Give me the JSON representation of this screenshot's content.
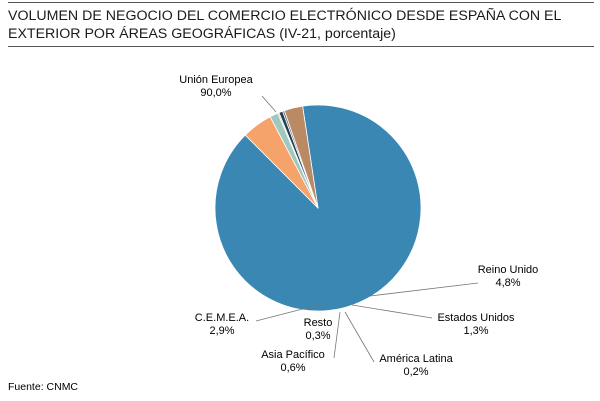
{
  "title": "VOLUMEN DE NEGOCIO DEL COMERCIO ELECTRÓNICO DESDE ESPAÑA CON EL EXTERIOR POR ÁREAS GEOGRÁFICAS (IV-21, porcentaje)",
  "source": "Fuente: CNMC",
  "chart_data": {
    "type": "pie",
    "title": "VOLUMEN DE NEGOCIO DEL COMERCIO ELECTRÓNICO DESDE ESPAÑA CON EL EXTERIOR POR ÁREAS GEOGRÁFICAS (IV-21, porcentaje)",
    "slices": [
      {
        "name": "Unión Europea",
        "value": 90.0,
        "label": "90,0%",
        "color": "#3a87b3"
      },
      {
        "name": "Reino Unido",
        "value": 4.8,
        "label": "4,8%",
        "color": "#f6a26b"
      },
      {
        "name": "Estados Unidos",
        "value": 1.3,
        "label": "1,3%",
        "color": "#9fc9bf"
      },
      {
        "name": "América Latina",
        "value": 0.2,
        "label": "0,2%",
        "color": "#c6b079"
      },
      {
        "name": "Asia Pacífico",
        "value": 0.6,
        "label": "0,6%",
        "color": "#1f3f5a"
      },
      {
        "name": "Resto",
        "value": 0.3,
        "label": "0,3%",
        "color": "#6f6f6f"
      },
      {
        "name": "C.E.M.E.A.",
        "value": 2.9,
        "label": "2,9%",
        "color": "#b98a63"
      }
    ]
  }
}
